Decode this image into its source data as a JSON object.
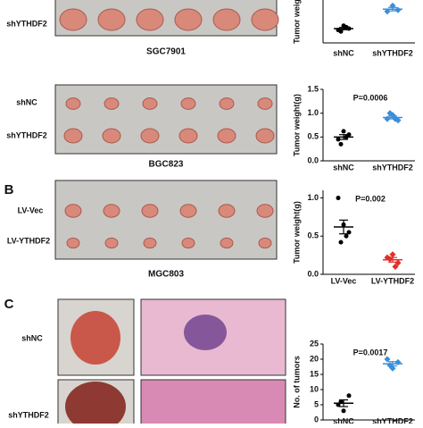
{
  "figure": {
    "panels": [
      {
        "row_labels": [
          "shYTHDF2"
        ],
        "caption": "SGC7901"
      },
      {
        "row_labels": [
          "shNC",
          "shYTHDF2"
        ],
        "caption": "BGC823"
      },
      {
        "letter": "B",
        "row_labels": [
          "LV-Vec",
          "LV-YTHDF2"
        ],
        "caption": "MGC803"
      },
      {
        "letter": "C",
        "row_labels": [
          "shNC",
          "shYTHDF2"
        ]
      }
    ]
  },
  "chart_data": [
    {
      "type": "dotplot",
      "y_label": "Tumor weig",
      "categories": [
        "shNC",
        "shYTHDF2"
      ],
      "points": [
        [
          0.45,
          0.6,
          0.5,
          0.4,
          0.55
        ],
        [
          1.1,
          1.3,
          1.15
        ]
      ],
      "means": [
        0.5,
        1.18
      ],
      "sems": [
        0.04,
        0.06
      ],
      "colors": [
        "#000000",
        "#3a8fd9"
      ],
      "ylim": [
        0,
        1.5
      ]
    },
    {
      "type": "dotplot",
      "y_label": "Tumor weight(g)",
      "annotation": "P=0.0006",
      "categories": [
        "shNC",
        "shYTHDF2"
      ],
      "points": [
        [
          0.45,
          0.62,
          0.55,
          0.35,
          0.5
        ],
        [
          0.88,
          0.96,
          0.85,
          1.0,
          0.88
        ]
      ],
      "means": [
        0.5,
        0.91
      ],
      "sems": [
        0.05,
        0.03
      ],
      "colors": [
        "#000000",
        "#3a8fd9"
      ],
      "ylim": [
        0,
        1.5
      ],
      "yticks": [
        {
          "value": 0,
          "label": "0.0"
        },
        {
          "value": 0.5,
          "label": "0.5"
        },
        {
          "value": 1,
          "label": "1.0"
        },
        {
          "value": 1.5,
          "label": "1.5"
        }
      ]
    },
    {
      "type": "dotplot",
      "y_label": "Tumor weight(g)",
      "annotation": "P=0.002",
      "categories": [
        "LV-Vec",
        "LV-YTHDF2"
      ],
      "points": [
        [
          1.0,
          0.65,
          0.55,
          0.42,
          0.5
        ],
        [
          0.22,
          0.26,
          0.15,
          0.2,
          0.1
        ]
      ],
      "means": [
        0.62,
        0.19
      ],
      "sems": [
        0.09,
        0.03
      ],
      "colors": [
        "#000000",
        "#e0302a"
      ],
      "ylim": [
        0,
        1.1
      ],
      "yticks": [
        {
          "value": 0,
          "label": "0.0"
        },
        {
          "value": 0.5,
          "label": "0.5"
        },
        {
          "value": 1,
          "label": "1.0"
        }
      ]
    },
    {
      "type": "dotplot",
      "y_label": "No. of tumors",
      "annotation": "P=0.0017",
      "categories": [
        "shNC",
        "shYTHDF2"
      ],
      "points": [
        [
          5,
          3,
          8,
          6
        ],
        [
          20,
          17,
          19,
          18
        ]
      ],
      "means": [
        5.5,
        18.5
      ],
      "sems": [
        1.1,
        0.7
      ],
      "colors": [
        "#000000",
        "#3a8fd9"
      ],
      "ylim": [
        0,
        25
      ],
      "yticks": [
        0,
        5,
        10,
        15,
        20,
        25
      ]
    }
  ]
}
